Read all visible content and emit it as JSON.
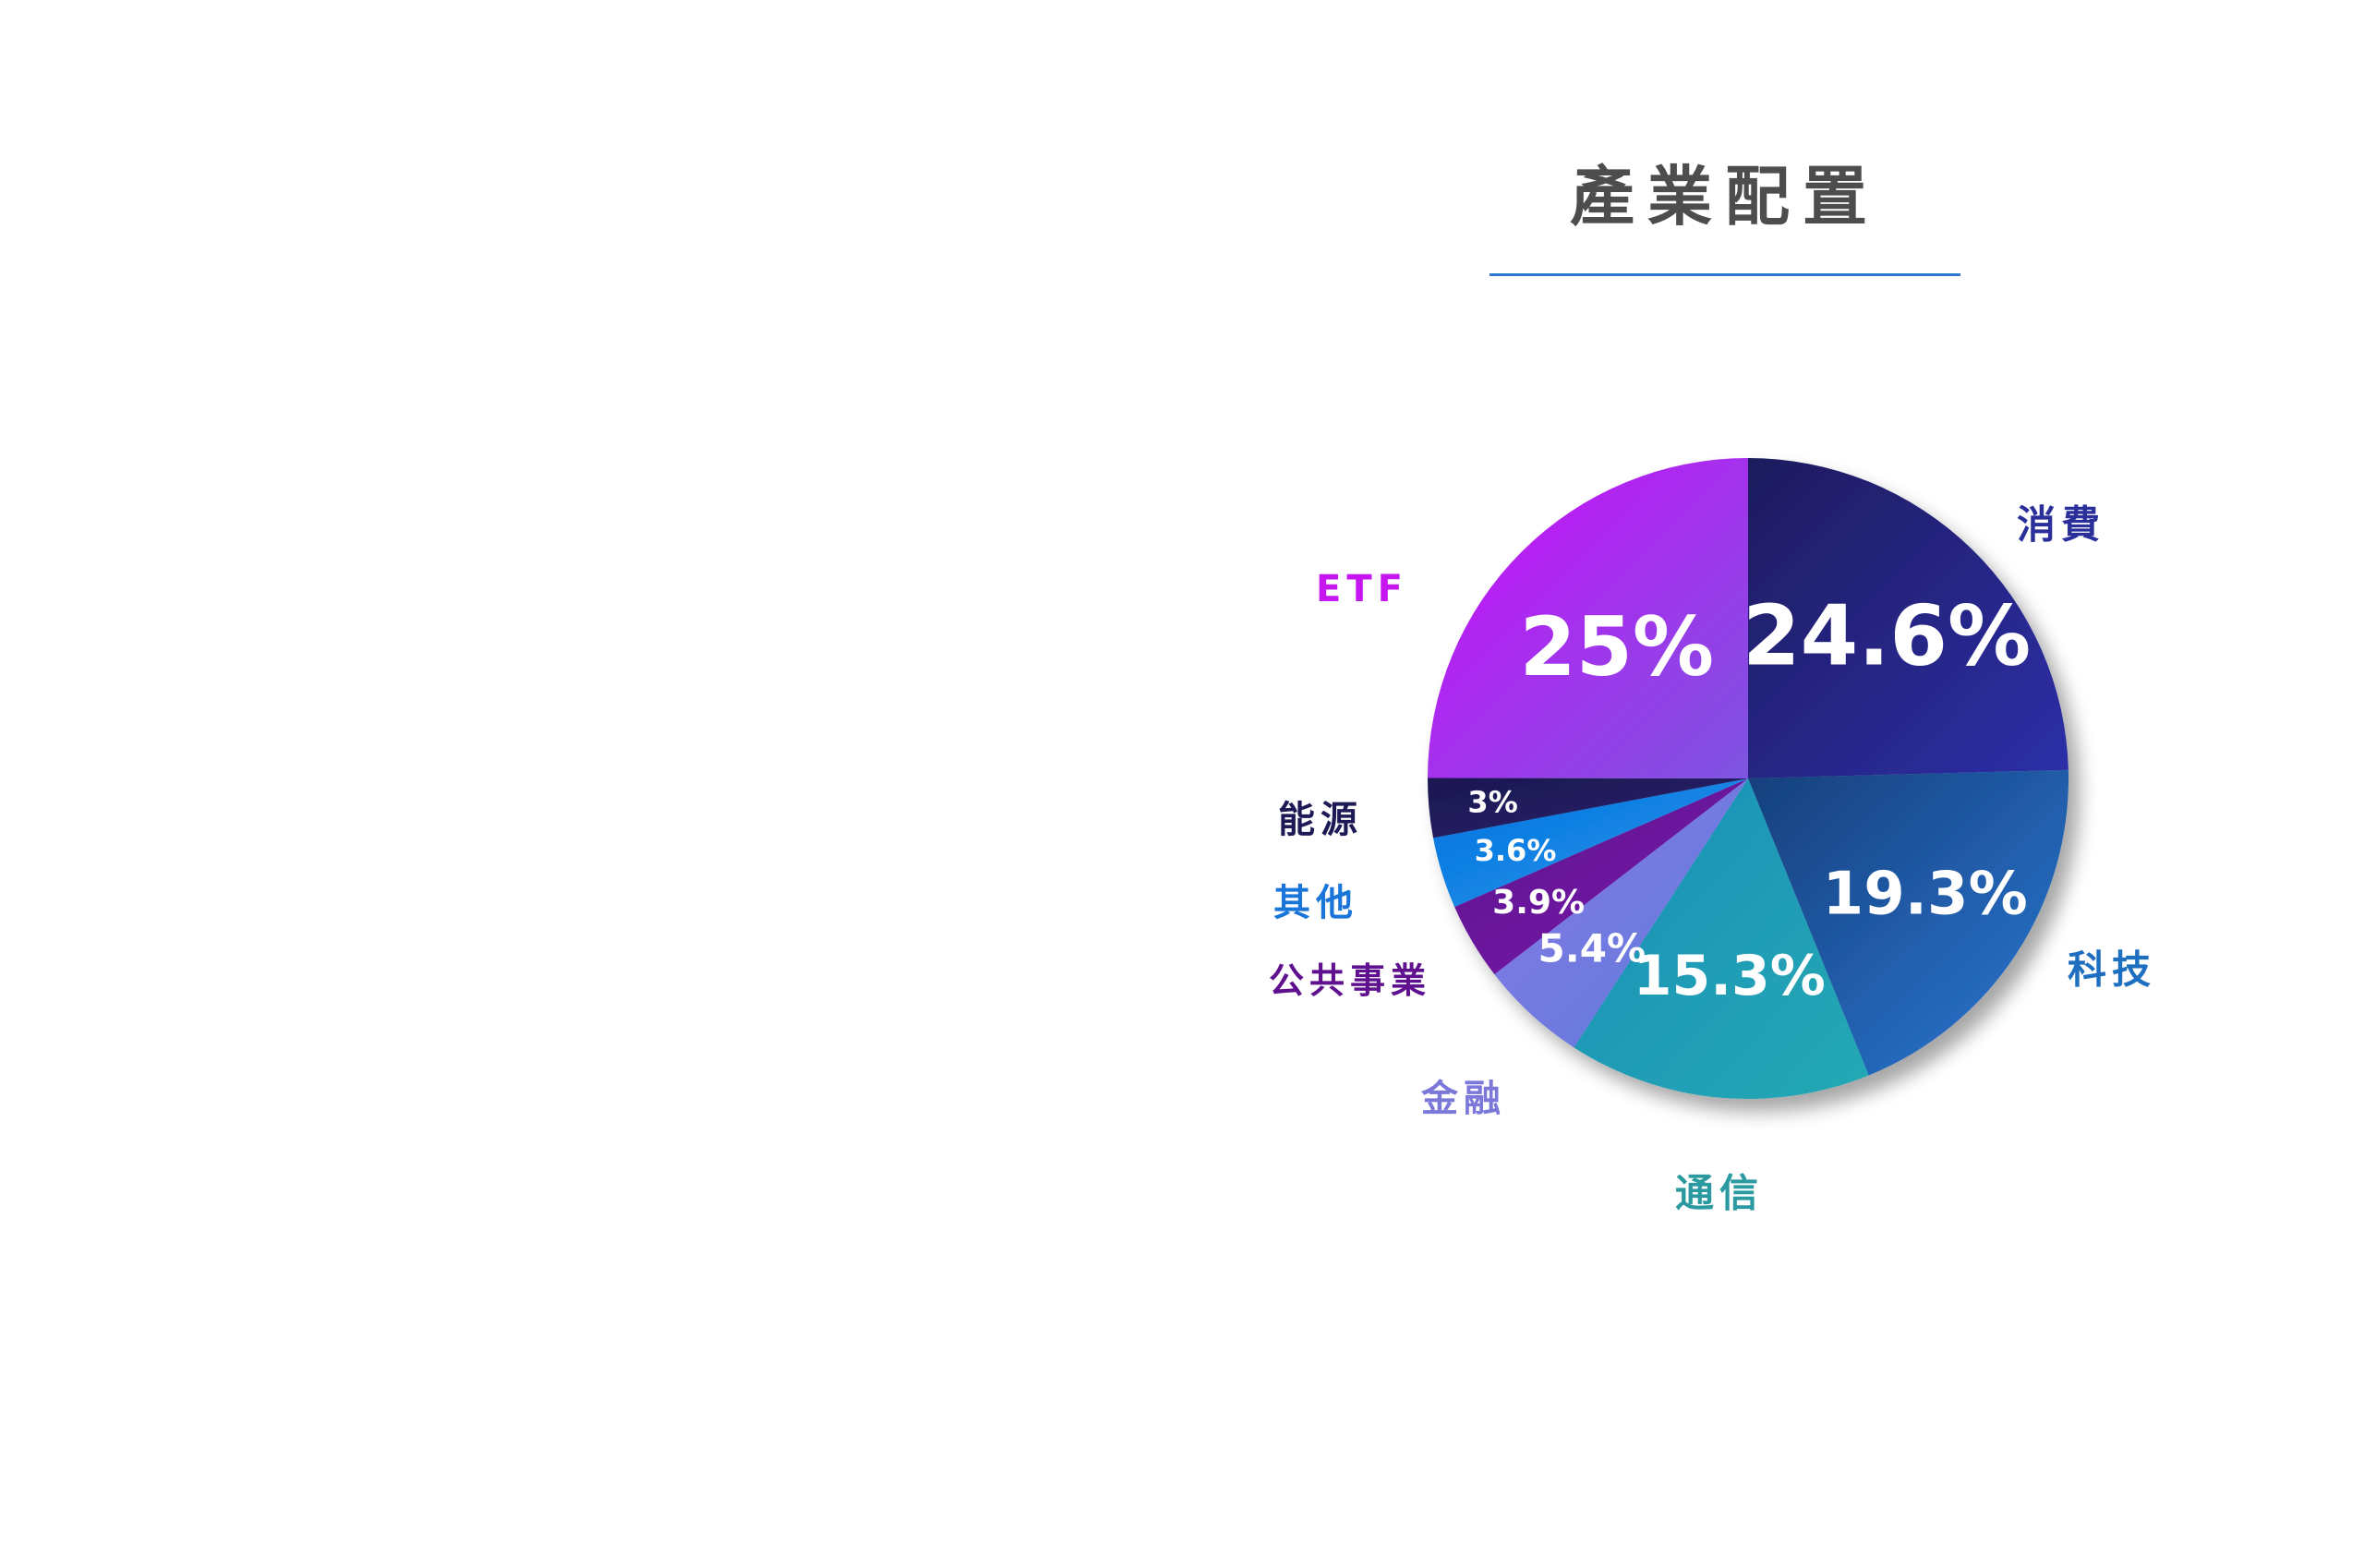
{
  "chart_data": {
    "type": "pie",
    "title": "產業配置",
    "start_angle_deg": 0,
    "direction": "clockwise",
    "slices": [
      {
        "label": "消費",
        "value": 24.6,
        "display": "24.6%",
        "color_a": "#1e1b5e",
        "color_b": "#2d2fa8",
        "label_color": "#2a2f9a"
      },
      {
        "label": "科技",
        "value": 19.3,
        "display": "19.3%",
        "color_a": "#173f7c",
        "color_b": "#2a78d4",
        "label_color": "#1f6fc0"
      },
      {
        "label": "通信",
        "value": 15.3,
        "display": "15.3%",
        "color_a": "#1e8eb8",
        "color_b": "#21a9b4",
        "label_color": "#2a9aa0"
      },
      {
        "label": "金融",
        "value": 5.4,
        "display": "5.4%",
        "color_a": "#8a7ae8",
        "color_b": "#5a7ad8",
        "label_color": "#7b78d9"
      },
      {
        "label": "公共事業",
        "value": 3.9,
        "display": "3.9%",
        "color_a": "#5c0b8a",
        "color_b": "#7a1fb0",
        "label_color": "#5e108f"
      },
      {
        "label": "其他",
        "value": 3.6,
        "display": "3.6%",
        "color_a": "#0b6fe0",
        "color_b": "#1a9ae8",
        "label_color": "#1a75d8"
      },
      {
        "label": "能源",
        "value": 3.0,
        "display": "3%",
        "color_a": "#1b1750",
        "color_b": "#2a2470",
        "label_color": "#1d1a55"
      },
      {
        "label": "ETF",
        "value": 25.0,
        "display": "25%",
        "color_a": "#cc0cfa",
        "color_b": "#7d55e0",
        "label_color": "#c516f0"
      }
    ]
  }
}
